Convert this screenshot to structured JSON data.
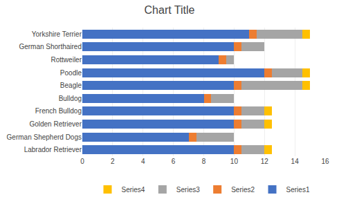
{
  "chart_data": {
    "type": "bar",
    "orientation": "horizontal",
    "stacked": true,
    "title": "Chart Title",
    "categories": [
      "Yorkshire Terrier",
      "German Shorthaired",
      "Rottweiler",
      "Poodle",
      "Beagle",
      "Bulldog",
      "French Bulldog",
      "Golden Retriever",
      "German Shepherd Dogs",
      "Labrador Retriever"
    ],
    "series": [
      {
        "name": "Series1",
        "color": "#4472C4",
        "values": [
          11,
          10,
          9,
          12,
          10,
          8,
          10,
          10,
          7,
          10
        ]
      },
      {
        "name": "Series2",
        "color": "#ED7D31",
        "values": [
          0.5,
          0.5,
          0.5,
          0.5,
          0.5,
          0.5,
          0.5,
          0.5,
          0.5,
          0.5
        ]
      },
      {
        "name": "Series3",
        "color": "#A5A5A5",
        "values": [
          3,
          1.5,
          0.5,
          2,
          4,
          1.5,
          1.5,
          1.5,
          2.5,
          1.5
        ]
      },
      {
        "name": "Series4",
        "color": "#FFC000",
        "values": [
          0.5,
          0,
          0,
          0.5,
          0.5,
          0,
          0.5,
          0.5,
          0,
          0.5
        ]
      }
    ],
    "xlim": [
      0,
      16
    ],
    "xticks": [
      0,
      2,
      4,
      6,
      8,
      10,
      12,
      14,
      16
    ],
    "grid": true,
    "legend": "bottom"
  }
}
